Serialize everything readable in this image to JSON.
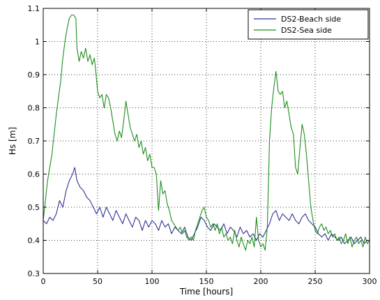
{
  "chart_data": {
    "type": "line",
    "title": "",
    "xlabel": "Time [hours]",
    "ylabel": "Hs [m]",
    "xlim": [
      0,
      300
    ],
    "ylim": [
      0.3,
      1.1
    ],
    "grid": true,
    "grid_style": "dotted",
    "legend_position": "top-right",
    "x_ticks": [
      0,
      50,
      100,
      150,
      200,
      250,
      300
    ],
    "x_tick_labels": [
      "0",
      "50",
      "100",
      "150",
      "200",
      "250",
      "300"
    ],
    "y_ticks": [
      0.3,
      0.4,
      0.5,
      0.6,
      0.7,
      0.8,
      0.9,
      1.0,
      1.1
    ],
    "y_tick_labels": [
      "0.3",
      "0.4",
      "0.5",
      "0.6",
      "0.7",
      "0.8",
      "0.9",
      "1",
      "1.1"
    ],
    "series": [
      {
        "name": "DS2-Beach side",
        "color": "#2e3192",
        "points": [
          [
            0,
            0.46
          ],
          [
            3,
            0.45
          ],
          [
            6,
            0.47
          ],
          [
            9,
            0.46
          ],
          [
            12,
            0.48
          ],
          [
            15,
            0.52
          ],
          [
            18,
            0.5
          ],
          [
            21,
            0.55
          ],
          [
            24,
            0.58
          ],
          [
            27,
            0.6
          ],
          [
            29,
            0.62
          ],
          [
            31,
            0.58
          ],
          [
            34,
            0.56
          ],
          [
            37,
            0.55
          ],
          [
            40,
            0.53
          ],
          [
            43,
            0.52
          ],
          [
            46,
            0.5
          ],
          [
            49,
            0.48
          ],
          [
            52,
            0.5
          ],
          [
            55,
            0.47
          ],
          [
            58,
            0.5
          ],
          [
            61,
            0.48
          ],
          [
            64,
            0.46
          ],
          [
            67,
            0.49
          ],
          [
            70,
            0.47
          ],
          [
            73,
            0.45
          ],
          [
            76,
            0.48
          ],
          [
            79,
            0.46
          ],
          [
            82,
            0.44
          ],
          [
            85,
            0.47
          ],
          [
            88,
            0.46
          ],
          [
            91,
            0.43
          ],
          [
            94,
            0.46
          ],
          [
            97,
            0.44
          ],
          [
            100,
            0.46
          ],
          [
            103,
            0.45
          ],
          [
            106,
            0.43
          ],
          [
            109,
            0.46
          ],
          [
            112,
            0.44
          ],
          [
            115,
            0.45
          ],
          [
            118,
            0.42
          ],
          [
            121,
            0.44
          ],
          [
            124,
            0.43
          ],
          [
            127,
            0.42
          ],
          [
            130,
            0.44
          ],
          [
            133,
            0.41
          ],
          [
            136,
            0.4
          ],
          [
            139,
            0.42
          ],
          [
            142,
            0.44
          ],
          [
            145,
            0.47
          ],
          [
            148,
            0.46
          ],
          [
            151,
            0.44
          ],
          [
            154,
            0.43
          ],
          [
            157,
            0.45
          ],
          [
            160,
            0.44
          ],
          [
            163,
            0.43
          ],
          [
            166,
            0.45
          ],
          [
            169,
            0.42
          ],
          [
            172,
            0.44
          ],
          [
            175,
            0.43
          ],
          [
            178,
            0.41
          ],
          [
            181,
            0.44
          ],
          [
            184,
            0.42
          ],
          [
            187,
            0.43
          ],
          [
            190,
            0.41
          ],
          [
            193,
            0.42
          ],
          [
            196,
            0.4
          ],
          [
            199,
            0.42
          ],
          [
            202,
            0.41
          ],
          [
            205,
            0.43
          ],
          [
            208,
            0.45
          ],
          [
            211,
            0.48
          ],
          [
            214,
            0.49
          ],
          [
            217,
            0.46
          ],
          [
            220,
            0.48
          ],
          [
            223,
            0.47
          ],
          [
            226,
            0.46
          ],
          [
            229,
            0.48
          ],
          [
            232,
            0.46
          ],
          [
            235,
            0.45
          ],
          [
            238,
            0.47
          ],
          [
            241,
            0.48
          ],
          [
            244,
            0.46
          ],
          [
            247,
            0.45
          ],
          [
            250,
            0.44
          ],
          [
            253,
            0.42
          ],
          [
            256,
            0.41
          ],
          [
            259,
            0.42
          ],
          [
            262,
            0.4
          ],
          [
            265,
            0.42
          ],
          [
            268,
            0.41
          ],
          [
            271,
            0.4
          ],
          [
            274,
            0.41
          ],
          [
            277,
            0.39
          ],
          [
            280,
            0.4
          ],
          [
            283,
            0.41
          ],
          [
            286,
            0.39
          ],
          [
            289,
            0.4
          ],
          [
            292,
            0.41
          ],
          [
            295,
            0.39
          ],
          [
            298,
            0.4
          ],
          [
            300,
            0.4
          ]
        ]
      },
      {
        "name": "DS2-Sea side",
        "color": "#1e8c1e",
        "points": [
          [
            0,
            0.46
          ],
          [
            2,
            0.52
          ],
          [
            4,
            0.58
          ],
          [
            6,
            0.62
          ],
          [
            8,
            0.66
          ],
          [
            10,
            0.72
          ],
          [
            12,
            0.78
          ],
          [
            14,
            0.83
          ],
          [
            16,
            0.88
          ],
          [
            18,
            0.95
          ],
          [
            20,
            1.0
          ],
          [
            22,
            1.04
          ],
          [
            24,
            1.07
          ],
          [
            26,
            1.08
          ],
          [
            28,
            1.08
          ],
          [
            30,
            1.07
          ],
          [
            31,
            0.98
          ],
          [
            33,
            0.94
          ],
          [
            35,
            0.97
          ],
          [
            37,
            0.95
          ],
          [
            39,
            0.98
          ],
          [
            41,
            0.94
          ],
          [
            43,
            0.96
          ],
          [
            45,
            0.93
          ],
          [
            47,
            0.95
          ],
          [
            48,
            0.92
          ],
          [
            50,
            0.85
          ],
          [
            52,
            0.83
          ],
          [
            54,
            0.84
          ],
          [
            56,
            0.8
          ],
          [
            58,
            0.84
          ],
          [
            60,
            0.83
          ],
          [
            62,
            0.8
          ],
          [
            64,
            0.76
          ],
          [
            66,
            0.72
          ],
          [
            68,
            0.7
          ],
          [
            70,
            0.73
          ],
          [
            72,
            0.71
          ],
          [
            74,
            0.76
          ],
          [
            76,
            0.82
          ],
          [
            78,
            0.78
          ],
          [
            80,
            0.74
          ],
          [
            82,
            0.72
          ],
          [
            84,
            0.7
          ],
          [
            86,
            0.72
          ],
          [
            88,
            0.68
          ],
          [
            90,
            0.7
          ],
          [
            92,
            0.66
          ],
          [
            94,
            0.68
          ],
          [
            96,
            0.64
          ],
          [
            98,
            0.66
          ],
          [
            100,
            0.62
          ],
          [
            102,
            0.62
          ],
          [
            104,
            0.6
          ],
          [
            106,
            0.49
          ],
          [
            108,
            0.58
          ],
          [
            110,
            0.54
          ],
          [
            112,
            0.55
          ],
          [
            114,
            0.51
          ],
          [
            116,
            0.49
          ],
          [
            118,
            0.46
          ],
          [
            120,
            0.45
          ],
          [
            122,
            0.44
          ],
          [
            124,
            0.43
          ],
          [
            126,
            0.44
          ],
          [
            128,
            0.42
          ],
          [
            130,
            0.43
          ],
          [
            132,
            0.41
          ],
          [
            134,
            0.4
          ],
          [
            136,
            0.41
          ],
          [
            138,
            0.4
          ],
          [
            140,
            0.43
          ],
          [
            142,
            0.45
          ],
          [
            144,
            0.47
          ],
          [
            146,
            0.49
          ],
          [
            148,
            0.5
          ],
          [
            150,
            0.47
          ],
          [
            152,
            0.46
          ],
          [
            154,
            0.44
          ],
          [
            156,
            0.45
          ],
          [
            158,
            0.43
          ],
          [
            160,
            0.45
          ],
          [
            162,
            0.42
          ],
          [
            164,
            0.44
          ],
          [
            166,
            0.41
          ],
          [
            168,
            0.42
          ],
          [
            170,
            0.4
          ],
          [
            172,
            0.41
          ],
          [
            174,
            0.39
          ],
          [
            176,
            0.43
          ],
          [
            178,
            0.4
          ],
          [
            180,
            0.38
          ],
          [
            182,
            0.41
          ],
          [
            184,
            0.39
          ],
          [
            186,
            0.37
          ],
          [
            188,
            0.4
          ],
          [
            190,
            0.39
          ],
          [
            192,
            0.41
          ],
          [
            194,
            0.38
          ],
          [
            196,
            0.47
          ],
          [
            198,
            0.4
          ],
          [
            200,
            0.38
          ],
          [
            202,
            0.39
          ],
          [
            204,
            0.37
          ],
          [
            206,
            0.44
          ],
          [
            208,
            0.7
          ],
          [
            210,
            0.8
          ],
          [
            212,
            0.86
          ],
          [
            214,
            0.91
          ],
          [
            216,
            0.85
          ],
          [
            218,
            0.84
          ],
          [
            220,
            0.85
          ],
          [
            222,
            0.8
          ],
          [
            224,
            0.82
          ],
          [
            226,
            0.78
          ],
          [
            228,
            0.74
          ],
          [
            230,
            0.72
          ],
          [
            232,
            0.62
          ],
          [
            234,
            0.6
          ],
          [
            236,
            0.68
          ],
          [
            238,
            0.75
          ],
          [
            240,
            0.72
          ],
          [
            242,
            0.66
          ],
          [
            244,
            0.58
          ],
          [
            246,
            0.5
          ],
          [
            248,
            0.46
          ],
          [
            250,
            0.43
          ],
          [
            252,
            0.42
          ],
          [
            254,
            0.44
          ],
          [
            256,
            0.45
          ],
          [
            258,
            0.43
          ],
          [
            260,
            0.44
          ],
          [
            262,
            0.42
          ],
          [
            264,
            0.43
          ],
          [
            266,
            0.41
          ],
          [
            268,
            0.42
          ],
          [
            270,
            0.4
          ],
          [
            272,
            0.41
          ],
          [
            274,
            0.39
          ],
          [
            276,
            0.4
          ],
          [
            278,
            0.42
          ],
          [
            280,
            0.39
          ],
          [
            282,
            0.41
          ],
          [
            284,
            0.38
          ],
          [
            286,
            0.4
          ],
          [
            288,
            0.41
          ],
          [
            290,
            0.39
          ],
          [
            292,
            0.4
          ],
          [
            294,
            0.38
          ],
          [
            296,
            0.41
          ],
          [
            298,
            0.39
          ],
          [
            300,
            0.4
          ]
        ]
      }
    ]
  }
}
